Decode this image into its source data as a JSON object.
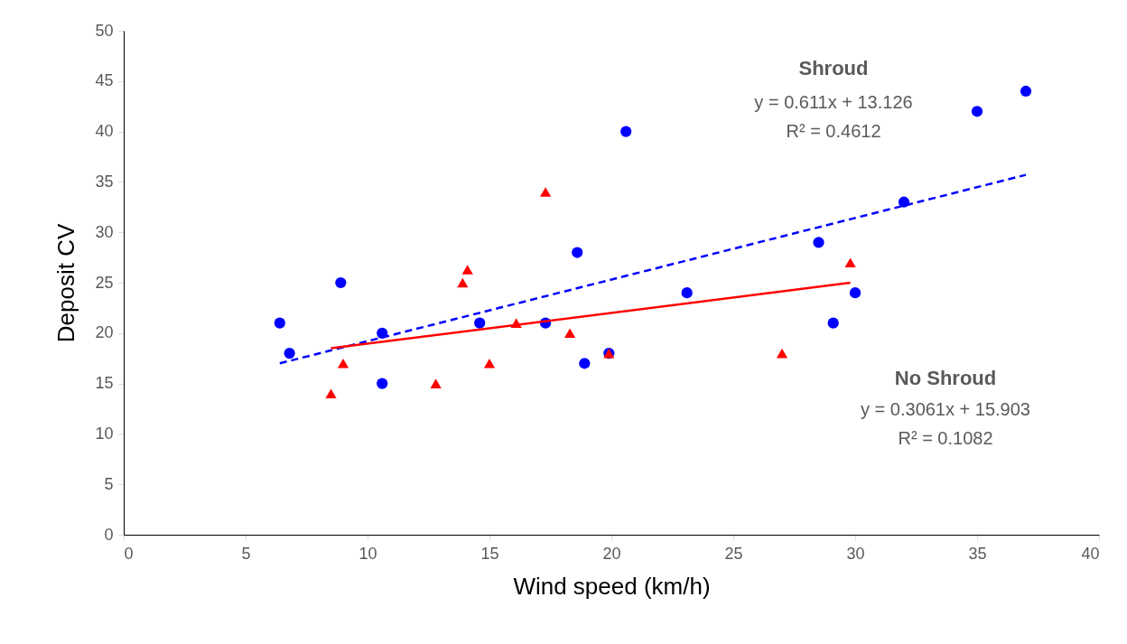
{
  "chart_data": {
    "type": "scatter",
    "xlabel": "Wind speed (km/h)",
    "ylabel": "Deposit CV",
    "xlim": [
      0,
      40
    ],
    "xticks": [
      0,
      5,
      10,
      15,
      20,
      25,
      30,
      35,
      40
    ],
    "ylim": [
      0,
      50
    ],
    "yticks": [
      0,
      5,
      10,
      15,
      20,
      25,
      30,
      35,
      40,
      45,
      50
    ],
    "grid": false,
    "series": [
      {
        "marker": "circle",
        "color": "#0000ff",
        "x": [
          6.4,
          6.8,
          8.9,
          10.6,
          10.6,
          14.6,
          17.3,
          18.6,
          18.9,
          19.9,
          20.6,
          23.1,
          28.5,
          29.1,
          30.0,
          32.0,
          35.0,
          37.0
        ],
        "values": [
          21,
          18,
          25,
          20,
          15,
          21,
          21,
          28,
          17,
          18,
          40,
          24,
          29,
          21,
          24,
          33,
          42,
          44
        ]
      },
      {
        "marker": "triangle",
        "color": "#ff0000",
        "x": [
          8.5,
          9.0,
          12.8,
          13.9,
          14.1,
          15.0,
          16.1,
          17.3,
          18.3,
          19.9,
          27.0,
          29.8
        ],
        "values": [
          14,
          17,
          15,
          25,
          26.3,
          17,
          21,
          34,
          20,
          18,
          18,
          27
        ]
      },
      {
        "type": "line",
        "marker": "none",
        "line_style": "dashed",
        "color": "#0000ff",
        "x": [
          6.4,
          37.0
        ],
        "values": [
          17,
          35.7
        ]
      },
      {
        "type": "line",
        "marker": "none",
        "line_style": "solid",
        "color": "#ff0000",
        "x": [
          8.5,
          29.8
        ],
        "values": [
          18.5,
          25
        ]
      }
    ],
    "annotations": [
      "Shroud",
      "y = 0.611x + 13.126",
      "R² = 0.4612",
      "No Shroud",
      "y = 0.3061x + 15.903",
      "R² = 0.1082"
    ]
  }
}
